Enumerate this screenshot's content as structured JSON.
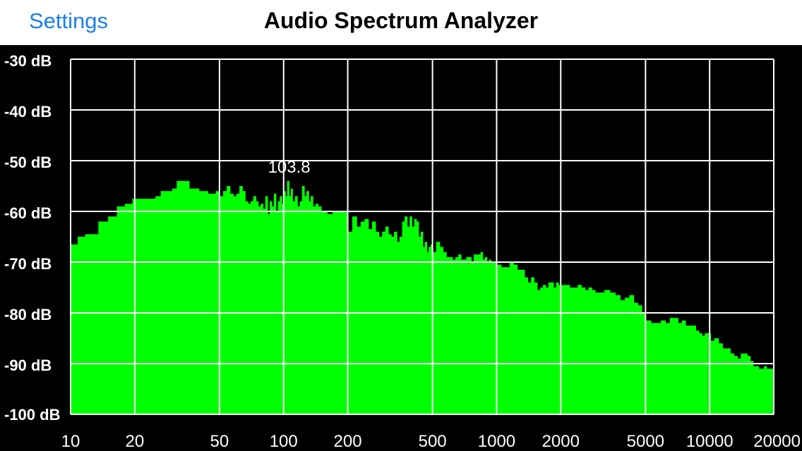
{
  "navbar": {
    "back_label": "Settings",
    "title": "Audio Spectrum Analyzer"
  },
  "colors": {
    "background": "#000000",
    "grid": "#ffffff",
    "bars": "#00ff00",
    "back_link": "#1a7ff0"
  },
  "chart_data": {
    "type": "bar",
    "title": "",
    "xlabel": "",
    "ylabel": "",
    "x_scale": "log",
    "xlim": [
      10,
      20000
    ],
    "ylim": [
      -100,
      -30
    ],
    "grid": true,
    "y_ticks": [
      -30,
      -40,
      -50,
      -60,
      -70,
      -80,
      -90,
      -100
    ],
    "y_tick_labels": [
      "-30 dB",
      "-40 dB",
      "-50 dB",
      "-60 dB",
      "-70 dB",
      "-80 dB",
      "-90 dB",
      "-100 dB"
    ],
    "x_ticks": [
      10,
      20,
      50,
      100,
      200,
      500,
      1000,
      2000,
      5000,
      10000,
      20000
    ],
    "x_tick_labels": [
      "10",
      "20",
      "50",
      "100",
      "200",
      "500",
      "1000",
      "2000",
      "5000",
      "10000",
      "20000"
    ],
    "peak": {
      "frequency": 103.8,
      "level": -54,
      "label": "103.8"
    },
    "bins": [
      [
        10,
        -66.5
      ],
      [
        10.8,
        -65
      ],
      [
        11.7,
        -64.5
      ],
      [
        12.5,
        -64.5
      ],
      [
        13.5,
        -62
      ],
      [
        15,
        -61
      ],
      [
        16.5,
        -59
      ],
      [
        18,
        -58.5
      ],
      [
        19.5,
        -57.5
      ],
      [
        21.5,
        -57.5
      ],
      [
        23,
        -57.5
      ],
      [
        25,
        -57
      ],
      [
        26.5,
        -56
      ],
      [
        28,
        -56
      ],
      [
        30,
        -55.5
      ],
      [
        31.5,
        -54
      ],
      [
        33.5,
        -54
      ],
      [
        36,
        -55.5
      ],
      [
        38,
        -55.5
      ],
      [
        40,
        -56
      ],
      [
        42,
        -56
      ],
      [
        44,
        -56.5
      ],
      [
        46,
        -56.5
      ],
      [
        48,
        -56
      ],
      [
        50,
        -57
      ],
      [
        52,
        -56
      ],
      [
        54,
        -55
      ],
      [
        56,
        -56.5
      ],
      [
        58,
        -57
      ],
      [
        60,
        -56.5
      ],
      [
        62,
        -55
      ],
      [
        64,
        -56
      ],
      [
        66,
        -58
      ],
      [
        68,
        -58.5
      ],
      [
        70,
        -58
      ],
      [
        72,
        -57
      ],
      [
        74,
        -58
      ],
      [
        76,
        -59
      ],
      [
        78,
        -58.5
      ],
      [
        80,
        -59.5
      ],
      [
        82,
        -57
      ],
      [
        84,
        -60.5
      ],
      [
        86,
        -58
      ],
      [
        88,
        -59
      ],
      [
        90,
        -56.5
      ],
      [
        92,
        -60
      ],
      [
        94,
        -58
      ],
      [
        96,
        -57
      ],
      [
        98,
        -58.5
      ],
      [
        100,
        -56
      ],
      [
        102,
        -57
      ],
      [
        103.8,
        -54
      ],
      [
        106,
        -57
      ],
      [
        108,
        -55.5
      ],
      [
        110,
        -58
      ],
      [
        113,
        -57
      ],
      [
        116,
        -59
      ],
      [
        119,
        -58
      ],
      [
        122,
        -55
      ],
      [
        125,
        -57
      ],
      [
        128,
        -56
      ],
      [
        131,
        -58
      ],
      [
        134,
        -57
      ],
      [
        137,
        -59
      ],
      [
        141,
        -58.5
      ],
      [
        145,
        -59
      ],
      [
        150,
        -60
      ],
      [
        155,
        -60
      ],
      [
        160,
        -60.5
      ],
      [
        165,
        -60.5
      ],
      [
        170,
        -60
      ],
      [
        180,
        -60
      ],
      [
        190,
        -60
      ],
      [
        200,
        -64
      ],
      [
        210,
        -61
      ],
      [
        220,
        -63
      ],
      [
        230,
        -62
      ],
      [
        240,
        -61.5
      ],
      [
        250,
        -63.5
      ],
      [
        260,
        -62
      ],
      [
        270,
        -64
      ],
      [
        280,
        -65
      ],
      [
        290,
        -64
      ],
      [
        300,
        -63
      ],
      [
        310,
        -64.5
      ],
      [
        320,
        -65
      ],
      [
        330,
        -64
      ],
      [
        340,
        -66
      ],
      [
        350,
        -65
      ],
      [
        360,
        -62
      ],
      [
        370,
        -61
      ],
      [
        380,
        -63
      ],
      [
        390,
        -61
      ],
      [
        400,
        -63
      ],
      [
        410,
        -61.5
      ],
      [
        420,
        -62
      ],
      [
        430,
        -65
      ],
      [
        440,
        -64
      ],
      [
        450,
        -67
      ],
      [
        460,
        -66
      ],
      [
        470,
        -68
      ],
      [
        480,
        -67
      ],
      [
        490,
        -66.5
      ],
      [
        500,
        -68
      ],
      [
        520,
        -66
      ],
      [
        540,
        -67
      ],
      [
        560,
        -68
      ],
      [
        580,
        -69
      ],
      [
        600,
        -69
      ],
      [
        620,
        -69.5
      ],
      [
        640,
        -69
      ],
      [
        660,
        -68.5
      ],
      [
        680,
        -69.5
      ],
      [
        700,
        -69.5
      ],
      [
        720,
        -69
      ],
      [
        740,
        -69
      ],
      [
        760,
        -70
      ],
      [
        780,
        -68.5
      ],
      [
        800,
        -68.5
      ],
      [
        820,
        -68.5
      ],
      [
        840,
        -68
      ],
      [
        860,
        -69.5
      ],
      [
        880,
        -69
      ],
      [
        900,
        -70
      ],
      [
        920,
        -69.5
      ],
      [
        940,
        -70
      ],
      [
        960,
        -70
      ],
      [
        980,
        -70
      ],
      [
        1000,
        -70.5
      ],
      [
        1050,
        -71
      ],
      [
        1100,
        -71
      ],
      [
        1150,
        -70
      ],
      [
        1200,
        -70.5
      ],
      [
        1250,
        -71.5
      ],
      [
        1300,
        -71.5
      ],
      [
        1350,
        -73
      ],
      [
        1400,
        -74
      ],
      [
        1450,
        -73
      ],
      [
        1500,
        -74
      ],
      [
        1550,
        -75.5
      ],
      [
        1600,
        -75
      ],
      [
        1650,
        -74.5
      ],
      [
        1700,
        -75
      ],
      [
        1750,
        -74
      ],
      [
        1800,
        -74
      ],
      [
        1850,
        -75
      ],
      [
        1900,
        -74
      ],
      [
        1950,
        -74.5
      ],
      [
        2000,
        -74.5
      ],
      [
        2100,
        -74.5
      ],
      [
        2200,
        -75
      ],
      [
        2300,
        -75
      ],
      [
        2400,
        -74.5
      ],
      [
        2500,
        -75
      ],
      [
        2600,
        -75.5
      ],
      [
        2700,
        -75
      ],
      [
        2800,
        -75.5
      ],
      [
        2900,
        -76
      ],
      [
        3000,
        -76
      ],
      [
        3200,
        -75.5
      ],
      [
        3400,
        -76
      ],
      [
        3600,
        -76.5
      ],
      [
        3800,
        -77.5
      ],
      [
        4000,
        -77
      ],
      [
        4200,
        -76.5
      ],
      [
        4400,
        -78
      ],
      [
        4600,
        -78.5
      ],
      [
        4800,
        -80
      ],
      [
        5000,
        -81.5
      ],
      [
        5300,
        -82
      ],
      [
        5600,
        -82
      ],
      [
        5900,
        -81.5
      ],
      [
        6200,
        -82
      ],
      [
        6500,
        -81
      ],
      [
        6800,
        -81
      ],
      [
        7100,
        -82
      ],
      [
        7400,
        -81.5
      ],
      [
        7700,
        -82.5
      ],
      [
        8000,
        -82.5
      ],
      [
        8300,
        -82.5
      ],
      [
        8600,
        -83.5
      ],
      [
        8900,
        -84
      ],
      [
        9200,
        -84.5
      ],
      [
        9500,
        -84
      ],
      [
        9800,
        -84
      ],
      [
        10100,
        -85.5
      ],
      [
        10500,
        -85
      ],
      [
        11000,
        -86
      ],
      [
        11500,
        -87
      ],
      [
        12000,
        -87
      ],
      [
        12500,
        -88
      ],
      [
        13000,
        -88.5
      ],
      [
        13500,
        -89
      ],
      [
        14000,
        -88
      ],
      [
        14500,
        -88
      ],
      [
        15000,
        -88.5
      ],
      [
        15500,
        -89.5
      ],
      [
        16000,
        -90.5
      ],
      [
        16500,
        -90.5
      ],
      [
        17000,
        -91
      ],
      [
        17500,
        -91
      ],
      [
        18000,
        -90.5
      ],
      [
        18500,
        -91
      ],
      [
        19000,
        -91
      ],
      [
        19500,
        -91
      ],
      [
        20000,
        -91
      ]
    ]
  }
}
